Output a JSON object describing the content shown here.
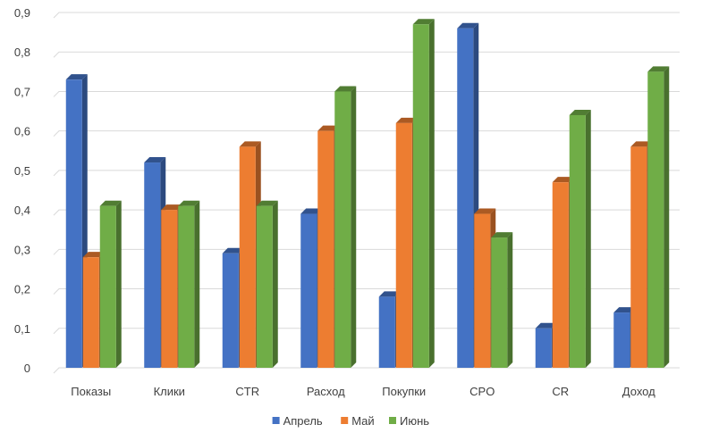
{
  "chart_data": {
    "type": "bar",
    "title": "",
    "xlabel": "",
    "ylabel": "",
    "categories": [
      "Показы",
      "Клики",
      "CTR",
      "Расход",
      "Покупки",
      "CPO",
      "CR",
      "Доход"
    ],
    "series": [
      {
        "name": "Апрель",
        "color": "#4472C4",
        "values": [
          0.73,
          0.52,
          0.29,
          0.39,
          0.18,
          0.86,
          0.1,
          0.14
        ]
      },
      {
        "name": "Май",
        "color": "#ED7D31",
        "values": [
          0.28,
          0.4,
          0.56,
          0.6,
          0.62,
          0.39,
          0.47,
          0.56
        ]
      },
      {
        "name": "Июнь",
        "color": "#70AD47",
        "values": [
          0.41,
          0.41,
          0.41,
          0.7,
          0.87,
          0.33,
          0.64,
          0.75
        ]
      }
    ],
    "ylim": [
      0,
      0.9
    ],
    "yticks": [
      "0",
      "0,1",
      "0,2",
      "0,3",
      "0,4",
      "0,5",
      "0,6",
      "0,7",
      "0,8",
      "0,9"
    ],
    "grid": true,
    "legend_position": "bottom",
    "style": "3d-column"
  }
}
